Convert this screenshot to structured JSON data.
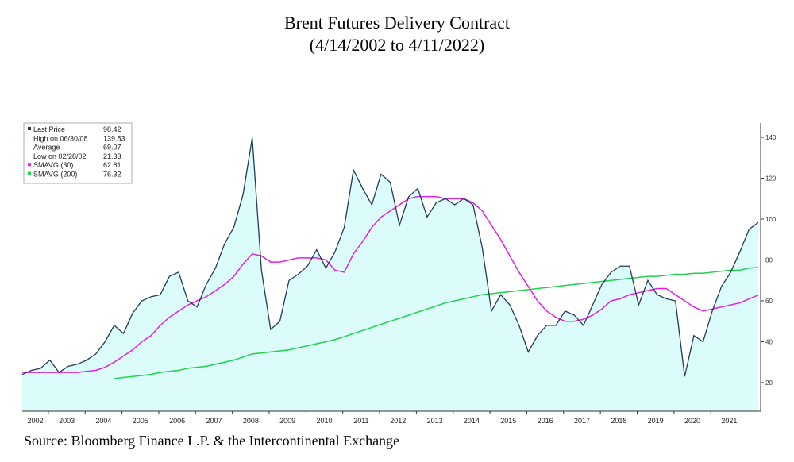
{
  "chart_data": {
    "type": "line",
    "title": "Brent Futures Delivery Contract",
    "subtitle": "(4/14/2002 to 4/11/2022)",
    "source": "Source: Bloomberg Finance L.P. & the Intercontinental Exchange",
    "x": [
      2002.29,
      2002.54,
      2002.79,
      2003.04,
      2003.29,
      2003.54,
      2003.79,
      2004.04,
      2004.29,
      2004.54,
      2004.79,
      2005.04,
      2005.29,
      2005.54,
      2005.79,
      2006.04,
      2006.29,
      2006.54,
      2006.79,
      2007.04,
      2007.29,
      2007.54,
      2007.79,
      2008.04,
      2008.29,
      2008.54,
      2008.79,
      2009.04,
      2009.29,
      2009.54,
      2009.79,
      2010.04,
      2010.29,
      2010.54,
      2010.79,
      2011.04,
      2011.29,
      2011.54,
      2011.79,
      2012.04,
      2012.29,
      2012.54,
      2012.79,
      2013.04,
      2013.29,
      2013.54,
      2013.79,
      2014.04,
      2014.29,
      2014.54,
      2014.79,
      2015.04,
      2015.29,
      2015.54,
      2015.79,
      2016.04,
      2016.29,
      2016.54,
      2016.79,
      2017.04,
      2017.29,
      2017.54,
      2017.79,
      2018.04,
      2018.29,
      2018.54,
      2018.79,
      2019.04,
      2019.29,
      2019.54,
      2019.79,
      2020.04,
      2020.29,
      2020.54,
      2020.79,
      2021.04,
      2021.29,
      2021.54,
      2021.79,
      2022.04,
      2022.29
    ],
    "series": [
      {
        "name": "Last Price",
        "color": "#1f3b57",
        "fill": "#dcfbfb",
        "last": 98.42,
        "values": [
          24,
          26,
          27,
          31,
          25,
          28,
          29,
          31,
          34,
          40,
          48,
          44,
          54,
          60,
          62,
          63,
          72,
          74,
          60,
          57,
          68,
          76,
          88,
          96,
          112,
          139.8,
          75,
          46,
          50,
          70,
          73,
          77,
          85,
          76,
          84,
          96,
          124,
          115,
          107,
          122,
          118,
          97,
          111,
          115,
          101,
          108,
          110,
          107,
          110,
          107,
          86,
          55,
          63,
          58,
          48,
          35,
          43,
          48,
          48,
          55,
          53,
          48,
          58,
          68,
          74,
          77,
          77,
          58,
          70,
          63,
          61,
          60,
          23,
          43,
          40,
          55,
          67,
          74,
          84,
          95,
          98.4
        ]
      },
      {
        "name": "SMAVG (30)",
        "color": "#e61ee6",
        "last": 62.81,
        "values": [
          25,
          25,
          25,
          25,
          25,
          25,
          25,
          25.5,
          26,
          27.5,
          30,
          33,
          36,
          40,
          43,
          48,
          52,
          55,
          58,
          60,
          62,
          65,
          68,
          72,
          78,
          83,
          82,
          79,
          79,
          80,
          81,
          81,
          81,
          80,
          75,
          74,
          83,
          89,
          96,
          101,
          104,
          107,
          110,
          111,
          111,
          111,
          110,
          110,
          110,
          108,
          104,
          97,
          90,
          82,
          74,
          67,
          60,
          55,
          52,
          50,
          50,
          51,
          53,
          56,
          60,
          61,
          63,
          64,
          65,
          66,
          66,
          63,
          60,
          57,
          55,
          56,
          57,
          58,
          59,
          61,
          62.8
        ]
      },
      {
        "name": "SMAVG (200)",
        "color": "#1ed24b",
        "last": 76.32,
        "values": [
          null,
          null,
          null,
          null,
          null,
          null,
          null,
          null,
          null,
          null,
          22,
          22.5,
          23,
          23.5,
          24,
          25,
          25.5,
          26,
          27,
          27.5,
          28,
          29,
          30,
          31,
          32.5,
          34,
          34.5,
          35,
          35.5,
          36,
          37,
          38,
          39,
          40,
          41,
          42.5,
          44,
          45.5,
          47,
          48.5,
          50,
          51.5,
          53,
          54.5,
          56,
          57.5,
          59,
          60,
          61,
          62,
          63,
          63.5,
          64,
          64.5,
          65,
          65.5,
          66,
          66.5,
          67,
          67.5,
          68,
          68.5,
          69,
          69.5,
          70,
          70.5,
          71,
          71.5,
          72,
          72,
          72.5,
          73,
          73,
          73.5,
          73.5,
          74,
          74.5,
          75,
          75,
          76,
          76.3
        ]
      }
    ],
    "legend_notes": [
      {
        "label": "High on 06/30/08",
        "value": 139.83
      },
      {
        "label": "Average",
        "value": 69.07
      },
      {
        "label": "Low on 02/28/02",
        "value": 21.33
      }
    ],
    "xlim": [
      2002.29,
      2022.29
    ],
    "xticks": [
      2002,
      2003,
      2004,
      2005,
      2006,
      2007,
      2008,
      2009,
      2010,
      2011,
      2012,
      2013,
      2014,
      2015,
      2016,
      2017,
      2018,
      2019,
      2020,
      2021
    ],
    "ylim": [
      6,
      147
    ],
    "yticks": [
      20,
      40,
      60,
      80,
      100,
      120,
      140
    ],
    "legend": "upper left"
  }
}
